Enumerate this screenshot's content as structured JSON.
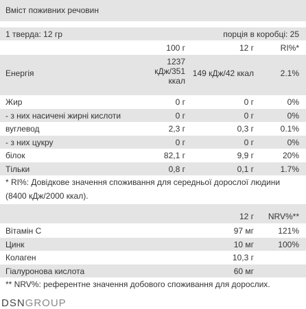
{
  "title": "Вміст поживних речовин",
  "serving": {
    "size": "1 тверда: 12 гр",
    "per_box": "порція в коробці: 25"
  },
  "nutrients": {
    "columns": [
      "100 г",
      "12 г",
      "RI%*"
    ],
    "rows": [
      {
        "name": "Енергія",
        "values": [
          "1237 кДж/351 ккал",
          "149 кДж/42 ккал",
          "2.1%"
        ]
      },
      {
        "name": "Жир",
        "values": [
          "0 г",
          "0 г",
          "0%"
        ]
      },
      {
        "name": "- з них насичені жирні кислоти",
        "values": [
          "0 г",
          "0 г",
          "0%"
        ]
      },
      {
        "name": "вуглевод",
        "values": [
          "2,3 г",
          "0,3 г",
          "0.1%"
        ]
      },
      {
        "name": "- з них цукру",
        "values": [
          "0 г",
          "0 г",
          "0%"
        ]
      },
      {
        "name": "білок",
        "values": [
          "82,1 г",
          "9,9 г",
          "20%"
        ]
      },
      {
        "name": "Тільки",
        "values": [
          "0,8 г",
          "0,1 г",
          "1.7%"
        ]
      }
    ],
    "note": "* RI%: Довідкове значення споживання для середньої дорослої людини (8400 кДж/2000 ккал)."
  },
  "vitamins": {
    "columns": [
      "12 г",
      "NRV%**"
    ],
    "rows": [
      {
        "name": "Вітамін C",
        "values": [
          "97 мг",
          "121%"
        ]
      },
      {
        "name": "Цинк",
        "values": [
          "10 мг",
          "100%"
        ]
      },
      {
        "name": "Колаген",
        "values": [
          "10,3 г"
        ]
      },
      {
        "name": "Гіалуронова кислота",
        "values": [
          "60 мг"
        ]
      }
    ],
    "note": "** NRV%: референтне значення добового споживання для дорослих."
  },
  "logo": {
    "part1": "DSN",
    "part2": "GROUP"
  }
}
